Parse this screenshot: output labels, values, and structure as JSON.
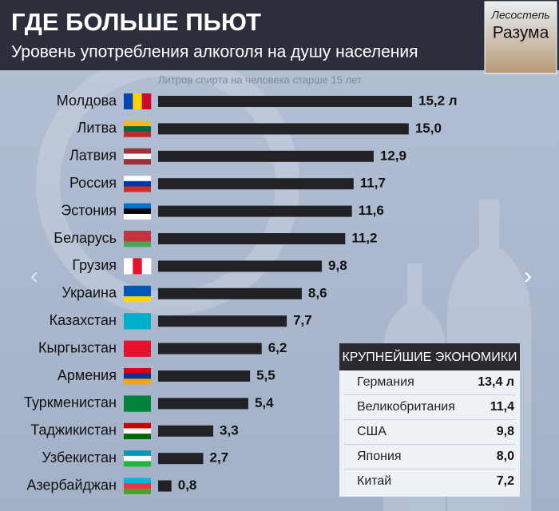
{
  "header": {
    "title": "ГДЕ БОЛЬШЕ ПЬЮТ",
    "subtitle": "Уровень употребления алкоголя на душу населения"
  },
  "logo": {
    "line1": "Лесостепь",
    "line2": "Разума"
  },
  "chart_data": {
    "type": "bar",
    "orientation": "horizontal",
    "axis_note": "Литров спирта на человека старше 15 лет",
    "categories": [
      "Молдова",
      "Литва",
      "Латвия",
      "Россия",
      "Эстония",
      "Беларусь",
      "Грузия",
      "Украина",
      "Казахстан",
      "Кыргызстан",
      "Армения",
      "Туркменистан",
      "Таджикистан",
      "Узбекистан",
      "Азербайджан"
    ],
    "values": [
      15.2,
      15.0,
      12.9,
      11.7,
      11.6,
      11.2,
      9.8,
      8.6,
      7.7,
      6.2,
      5.5,
      5.4,
      3.3,
      2.7,
      0.8
    ],
    "value_labels": [
      "15,2 л",
      "15,0",
      "12,9",
      "11,7",
      "11,6",
      "11,2",
      "9,8",
      "8,6",
      "7,7",
      "6,2",
      "5,5",
      "5,4",
      "3,3",
      "2,7",
      "0,8"
    ],
    "color": "#222226"
  },
  "inset": {
    "title": "КРУПНЕЙШИЕ ЭКОНОМИКИ",
    "rows": [
      [
        "Германия",
        "13,4 л"
      ],
      [
        "Великобритания",
        "11,4"
      ],
      [
        "США",
        "9,8"
      ],
      [
        "Япония",
        "8,0"
      ],
      [
        "Китай",
        "7,2"
      ]
    ]
  }
}
